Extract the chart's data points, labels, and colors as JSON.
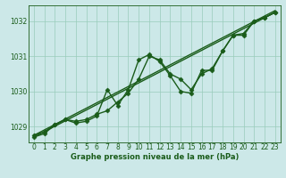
{
  "bg_color": "#cce8e8",
  "grid_color": "#99ccbb",
  "line_color": "#1a5c1a",
  "marker_color": "#1a5c1a",
  "xlabel": "Graphe pression niveau de la mer (hPa)",
  "xlim": [
    -0.5,
    23.5
  ],
  "ylim": [
    1028.55,
    1032.45
  ],
  "yticks": [
    1029,
    1030,
    1031,
    1032
  ],
  "xticks": [
    0,
    1,
    2,
    3,
    4,
    5,
    6,
    7,
    8,
    9,
    10,
    11,
    12,
    13,
    14,
    15,
    16,
    17,
    18,
    19,
    20,
    21,
    22,
    23
  ],
  "series": [
    {
      "x": [
        0,
        23
      ],
      "y": [
        1028.7,
        1032.25
      ],
      "has_markers": false,
      "lw": 1.0
    },
    {
      "x": [
        0,
        23
      ],
      "y": [
        1028.75,
        1032.3
      ],
      "has_markers": false,
      "lw": 1.0
    },
    {
      "x": [
        0,
        1,
        2,
        3,
        4,
        5,
        6,
        7,
        8,
        9,
        10,
        11,
        12,
        13,
        14,
        15,
        16,
        17,
        18,
        19,
        20,
        21,
        22,
        23
      ],
      "y": [
        1028.7,
        1028.8,
        1029.05,
        1029.2,
        1029.1,
        1029.15,
        1029.3,
        1030.05,
        1029.6,
        1030.05,
        1030.9,
        1031.05,
        1030.85,
        1030.45,
        1030.0,
        1029.95,
        1030.6,
        1030.6,
        1031.15,
        1031.6,
        1031.6,
        1032.0,
        1032.1,
        1032.25
      ],
      "has_markers": true,
      "lw": 1.0
    },
    {
      "x": [
        0,
        1,
        2,
        3,
        4,
        5,
        6,
        7,
        8,
        9,
        10,
        11,
        12,
        13,
        14,
        15,
        16,
        17,
        18,
        19,
        20,
        21,
        22,
        23
      ],
      "y": [
        1028.75,
        1028.85,
        1029.05,
        1029.2,
        1029.15,
        1029.2,
        1029.35,
        1029.45,
        1029.7,
        1029.95,
        1030.35,
        1031.0,
        1030.9,
        1030.5,
        1030.35,
        1030.05,
        1030.5,
        1030.65,
        1031.15,
        1031.6,
        1031.65,
        1032.0,
        1032.1,
        1032.25
      ],
      "has_markers": true,
      "lw": 1.0
    }
  ],
  "marker_size": 2.5,
  "marker_style": "D",
  "tick_fontsize": 5.5,
  "xlabel_fontsize": 6.0
}
